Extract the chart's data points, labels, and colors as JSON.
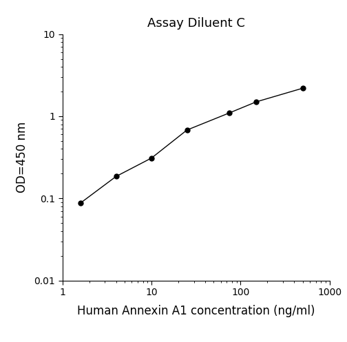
{
  "title": "Assay Diluent C",
  "xlabel": "Human Annexin A1 concentration (ng/ml)",
  "ylabel": "OD=450 nm",
  "x_data": [
    1.6,
    4.0,
    10.0,
    25.0,
    75.0,
    150.0,
    500.0
  ],
  "y_data": [
    0.088,
    0.185,
    0.31,
    0.68,
    1.1,
    1.5,
    2.2
  ],
  "xlim": [
    1.0,
    1000.0
  ],
  "ylim": [
    0.01,
    10.0
  ],
  "line_color": "#000000",
  "marker_color": "#000000",
  "marker_style": "o",
  "marker_size": 5,
  "line_width": 1.0,
  "title_fontsize": 13,
  "label_fontsize": 12,
  "tick_fontsize": 10,
  "background_color": "#ffffff",
  "fig_width": 5.04,
  "fig_height": 4.97,
  "dpi": 100
}
